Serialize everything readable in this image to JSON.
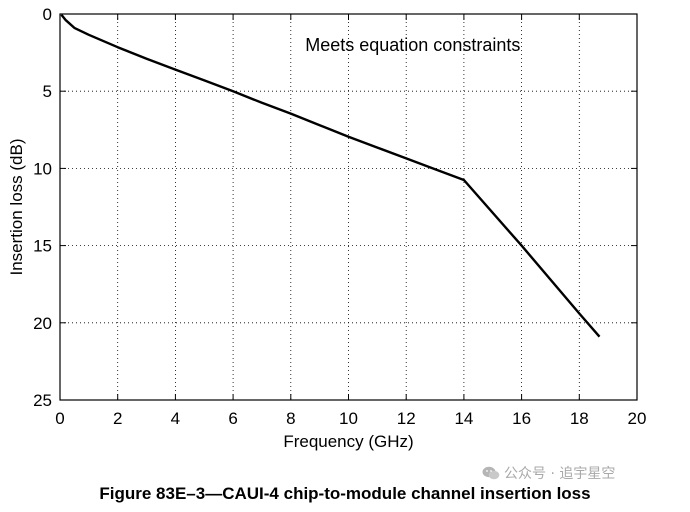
{
  "chart_data": {
    "type": "line",
    "xlabel": "Frequency (GHz)",
    "ylabel": "Insertion loss (dB)",
    "xlim": [
      0,
      20
    ],
    "ylim": [
      0,
      25
    ],
    "y_inverted": true,
    "xticks": [
      0,
      2,
      4,
      6,
      8,
      10,
      12,
      14,
      16,
      18,
      20
    ],
    "yticks": [
      0,
      5,
      10,
      15,
      20,
      25
    ],
    "grid": "dotted",
    "annotations": [
      {
        "text": "Meets equation constraints",
        "x": 8.5,
        "y": 2.4
      }
    ],
    "series": [
      {
        "color": "#000000",
        "points": [
          [
            0.05,
            0.05
          ],
          [
            0.2,
            0.4
          ],
          [
            0.5,
            0.9
          ],
          [
            1,
            1.35
          ],
          [
            2,
            2.15
          ],
          [
            3,
            2.9
          ],
          [
            4,
            3.6
          ],
          [
            5,
            4.3
          ],
          [
            6,
            5.0
          ],
          [
            7,
            5.75
          ],
          [
            8,
            6.45
          ],
          [
            9,
            7.2
          ],
          [
            10,
            7.95
          ],
          [
            11,
            8.65
          ],
          [
            12,
            9.35
          ],
          [
            13,
            10.05
          ],
          [
            14,
            10.75
          ],
          [
            16,
            15.0
          ],
          [
            18,
            19.4
          ],
          [
            18.7,
            20.9
          ]
        ]
      }
    ]
  },
  "caption": "Figure 83E–3—CAUI-4 chip-to-module channel insertion loss",
  "watermark": {
    "text": "公众号 · 追宇星空",
    "icon": "wechat-icon"
  }
}
